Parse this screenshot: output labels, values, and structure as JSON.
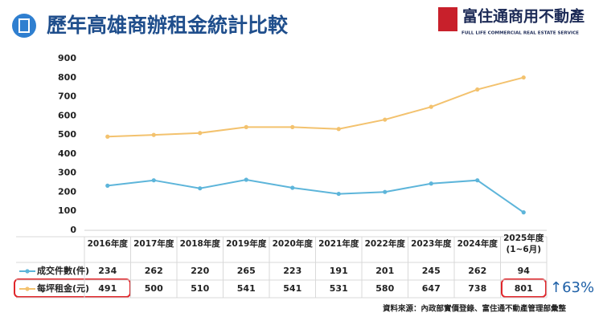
{
  "logo": {
    "brand": "富住通商用不動產",
    "brand_en": "FULL LIFE COMMERCIAL REAL ESTATE SERVICE"
  },
  "chart_data": {
    "type": "line",
    "title": "歷年高雄商辦租金統計比較",
    "categories": [
      "2016年度",
      "2017年度",
      "2018年度",
      "2019年度",
      "2020年度",
      "2021年度",
      "2022年度",
      "2023年度",
      "2024年度",
      "2025年度\n(1~6月)"
    ],
    "series": [
      {
        "name": "成交件數(件)",
        "color": "#5db5da",
        "values": [
          234,
          262,
          220,
          265,
          223,
          191,
          201,
          245,
          262,
          94
        ]
      },
      {
        "name": "每坪租金(元)",
        "color": "#f3c26e",
        "values": [
          491,
          500,
          510,
          541,
          541,
          531,
          580,
          647,
          738,
          801
        ]
      }
    ],
    "ylim": [
      0,
      900
    ],
    "yticks": [
      0,
      100,
      200,
      300,
      400,
      500,
      600,
      700,
      800,
      900
    ],
    "annotation": "↑63%",
    "source": "資料來源：內政部實價登錄、富住通不動產管理部彙整"
  }
}
